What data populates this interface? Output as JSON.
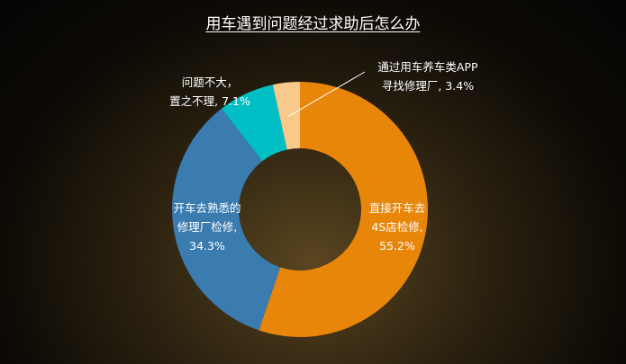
{
  "chart_data": {
    "type": "pie",
    "variant": "donut",
    "title": "用车遇到问题经过求助后怎么办",
    "slices": [
      {
        "label_lines": [
          "直接开车去",
          "4S店检修,",
          "55.2%"
        ],
        "value": 55.2,
        "color": "#E8860A"
      },
      {
        "label_lines": [
          "开车去熟悉的",
          "修理厂检修,",
          "34.3%"
        ],
        "value": 34.3,
        "color": "#3A7BB0"
      },
      {
        "label_lines": [
          "问题不大，",
          "置之不理, 7.1%"
        ],
        "value": 7.1,
        "color": "#00BFC4"
      },
      {
        "label_lines": [
          "通过用车养车类APP",
          "寻找修理厂, 3.4%"
        ],
        "value": 3.4,
        "color": "#F9C98B"
      }
    ],
    "start_angle_deg": 0,
    "direction": "clockwise",
    "legend": "none"
  }
}
